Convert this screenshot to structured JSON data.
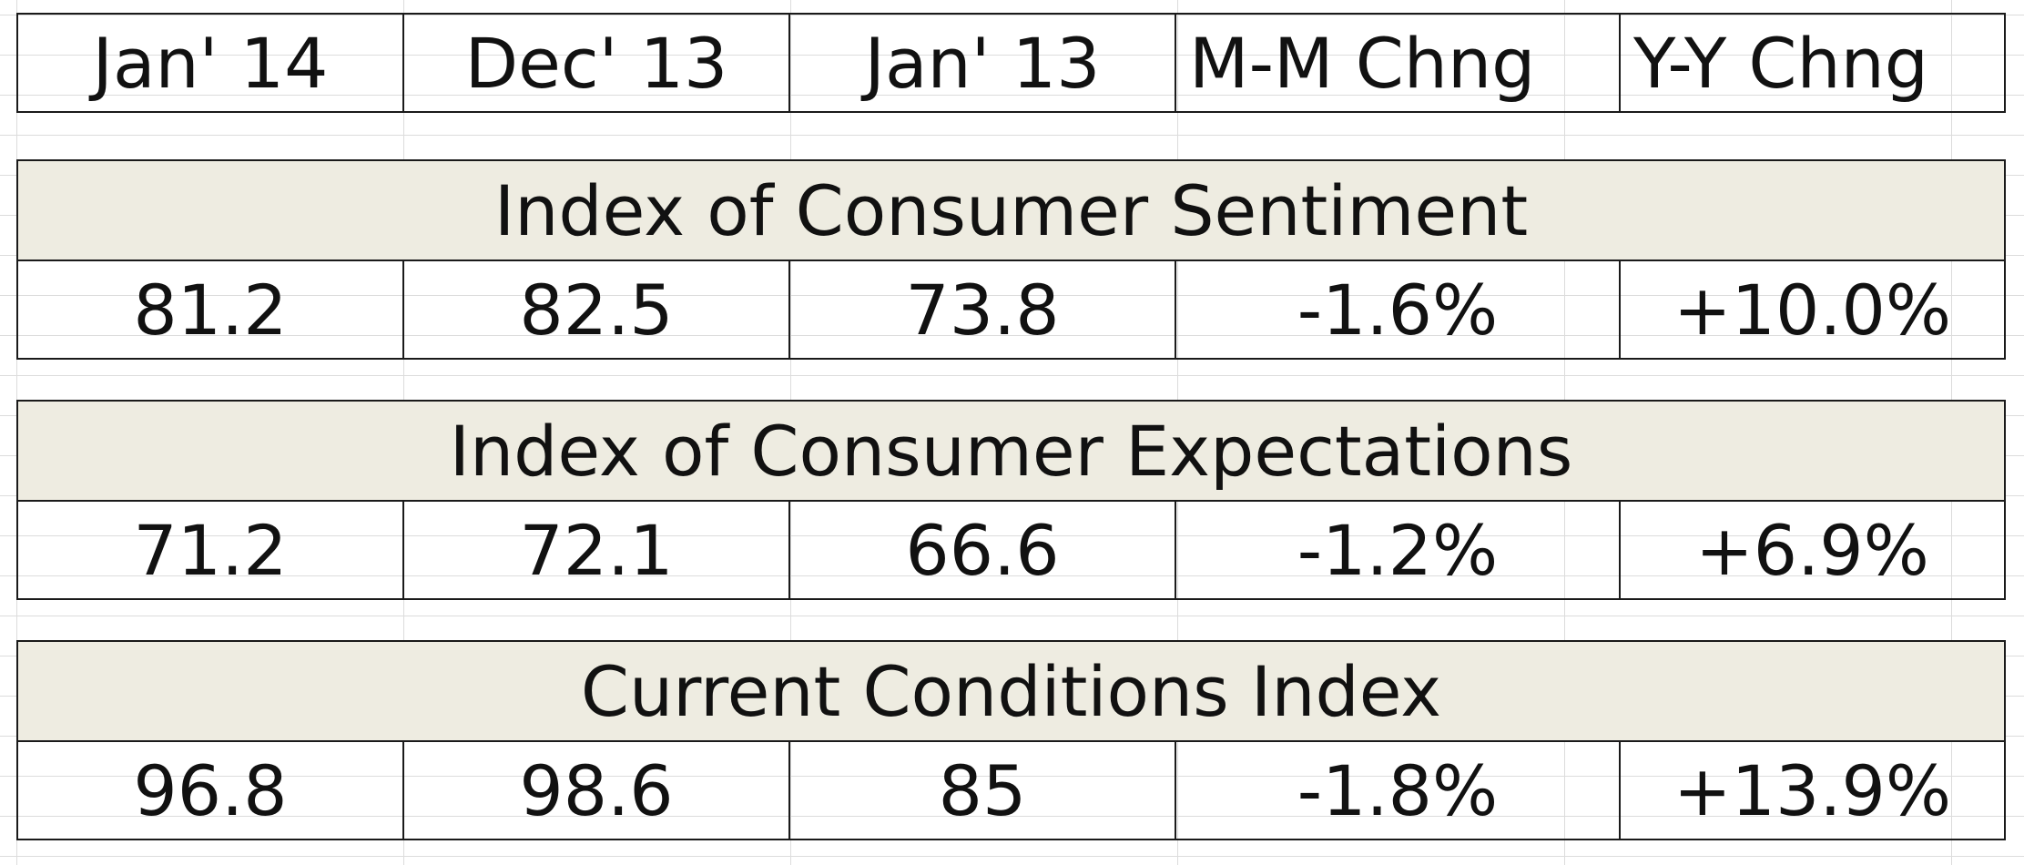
{
  "header": {
    "columns": [
      "Jan' 14",
      "Dec' 13",
      "Jan' 13",
      "M-M Chng",
      "Y-Y Chng"
    ]
  },
  "sections": [
    {
      "title": "Index of Consumer Sentiment",
      "values": [
        "81.2",
        "82.5",
        "73.8",
        "-1.6%",
        "+10.0%"
      ]
    },
    {
      "title": "Index of Consumer Expectations",
      "values": [
        "71.2",
        "72.1",
        "66.6",
        "-1.2%",
        "+6.9%"
      ]
    },
    {
      "title": "Current Conditions Index",
      "values": [
        "96.8",
        "98.6",
        "85",
        "-1.8%",
        "+13.9%"
      ]
    }
  ]
}
